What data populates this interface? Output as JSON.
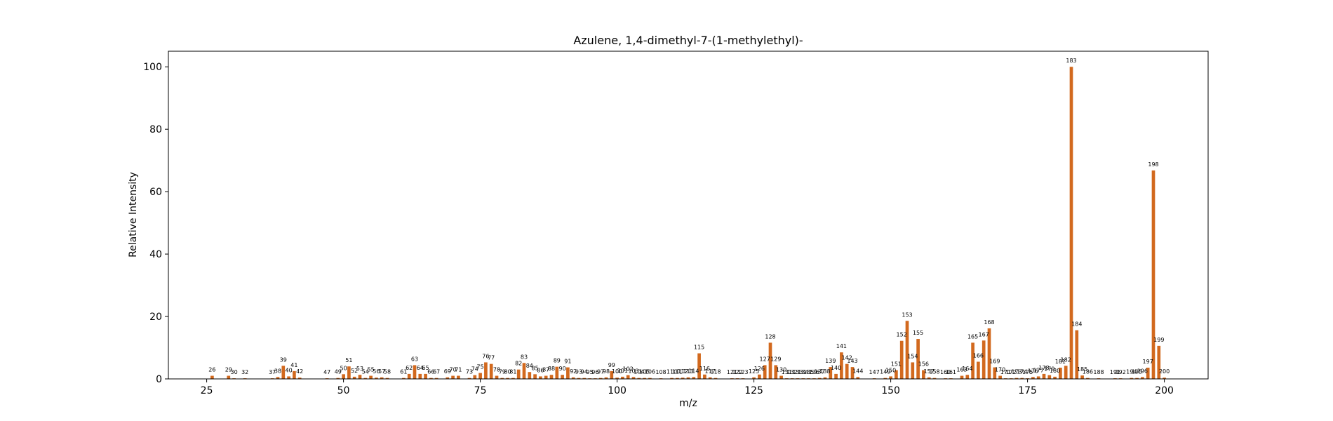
{
  "chart_data": {
    "type": "bar",
    "title": "Azulene, 1,4-dimethyl-7-(1-methylethyl)-",
    "xlabel": "m/z",
    "ylabel": "Relative Intensity",
    "xlim": [
      18,
      208
    ],
    "ylim": [
      0,
      105
    ],
    "xticks": [
      25,
      50,
      75,
      100,
      125,
      150,
      175,
      200
    ],
    "yticks": [
      0,
      20,
      40,
      60,
      80,
      100
    ],
    "grid": false,
    "bar_color": "#d2691e",
    "x": [
      26,
      29,
      30,
      32,
      37,
      38,
      39,
      40,
      41,
      42,
      47,
      49,
      50,
      51,
      52,
      53,
      54,
      55,
      56,
      57,
      58,
      61,
      62,
      63,
      64,
      65,
      66,
      67,
      69,
      70,
      71,
      73,
      74,
      75,
      76,
      77,
      78,
      79,
      80,
      81,
      82,
      83,
      84,
      85,
      86,
      87,
      88,
      89,
      90,
      91,
      92,
      93,
      94,
      95,
      96,
      97,
      98,
      99,
      100,
      101,
      102,
      103,
      104,
      105,
      106,
      108,
      110,
      111,
      112,
      113,
      114,
      115,
      116,
      117,
      118,
      121,
      122,
      123,
      125,
      126,
      127,
      128,
      129,
      130,
      131,
      132,
      133,
      134,
      135,
      136,
      137,
      138,
      139,
      140,
      141,
      142,
      143,
      144,
      147,
      149,
      150,
      151,
      152,
      153,
      154,
      155,
      156,
      157,
      158,
      160,
      161,
      163,
      164,
      165,
      166,
      167,
      168,
      169,
      170,
      171,
      172,
      173,
      174,
      175,
      176,
      177,
      178,
      179,
      180,
      181,
      182,
      183,
      184,
      185,
      186,
      188,
      191,
      192,
      194,
      195,
      196,
      197,
      198,
      199,
      200
    ],
    "values": [
      1.0,
      1.0,
      0.2,
      0.2,
      0.2,
      0.6,
      4.2,
      0.8,
      2.5,
      0.4,
      0.2,
      0.3,
      1.5,
      4.0,
      0.7,
      1.3,
      0.3,
      1.0,
      0.4,
      0.5,
      0.3,
      0.3,
      1.6,
      4.4,
      1.6,
      1.6,
      0.3,
      0.3,
      0.5,
      1.0,
      1.0,
      0.3,
      1.2,
      1.9,
      5.3,
      4.8,
      1.0,
      0.3,
      0.3,
      0.3,
      3.0,
      5.1,
      2.2,
      1.5,
      0.8,
      1.0,
      1.3,
      3.9,
      1.3,
      3.7,
      0.5,
      0.3,
      0.3,
      0.2,
      0.2,
      0.3,
      0.5,
      2.5,
      0.4,
      0.7,
      1.2,
      0.6,
      0.3,
      0.3,
      0.3,
      0.2,
      0.3,
      0.3,
      0.4,
      0.5,
      0.6,
      8.2,
      1.4,
      0.5,
      0.3,
      0.2,
      0.2,
      0.2,
      0.5,
      1.4,
      4.4,
      11.6,
      4.4,
      1.0,
      0.2,
      0.2,
      0.2,
      0.2,
      0.2,
      0.2,
      0.3,
      0.5,
      3.8,
      1.6,
      8.5,
      4.8,
      3.8,
      0.6,
      0.2,
      0.3,
      0.8,
      2.8,
      12.2,
      18.6,
      5.3,
      12.8,
      2.8,
      0.5,
      0.3,
      0.2,
      0.2,
      1.0,
      1.3,
      11.6,
      5.5,
      12.3,
      16.2,
      3.7,
      1.0,
      0.2,
      0.2,
      0.3,
      0.3,
      0.2,
      0.6,
      0.8,
      1.6,
      1.2,
      0.7,
      3.6,
      4.2,
      100.0,
      15.6,
      1.1,
      0.3,
      0.2,
      0.2,
      0.2,
      0.3,
      0.3,
      0.6,
      3.6,
      66.8,
      10.6,
      0.4
    ],
    "labels": [
      "26",
      "29",
      "30",
      "32",
      "37",
      "38",
      "39",
      "40",
      "41",
      "42",
      "47",
      "49",
      "50",
      "51",
      "52",
      "53",
      "54",
      "55",
      "56",
      "57",
      "58",
      "61",
      "62",
      "63",
      "64",
      "65",
      "66",
      "67",
      "69",
      "70",
      "71",
      "73",
      "74",
      "75",
      "76",
      "77",
      "78",
      "79",
      "80",
      "81",
      "82",
      "83",
      "84",
      "85",
      "86",
      "87",
      "88",
      "89",
      "90",
      "91",
      "92",
      "93",
      "94",
      "95",
      "96",
      "97",
      "98",
      "99",
      "100",
      "101",
      "102",
      "103",
      "104",
      "105",
      "106",
      "108",
      "110",
      "111",
      "112",
      "113",
      "114",
      "115",
      "116",
      "117",
      "118",
      "121",
      "122",
      "123",
      "125",
      "126",
      "127",
      "128",
      "129",
      "130",
      "131",
      "132",
      "133",
      "134",
      "135",
      "136",
      "137",
      "138",
      "139",
      "140",
      "141",
      "142",
      "143",
      "144",
      "147",
      "149",
      "150",
      "151",
      "152",
      "153",
      "154",
      "155",
      "156",
      "157",
      "158",
      "160",
      "161",
      "163",
      "164",
      "165",
      "166",
      "167",
      "168",
      "169",
      "170",
      "171",
      "172",
      "173",
      "174",
      "175",
      "176",
      "177",
      "178",
      "179",
      "180",
      "181",
      "182",
      "183",
      "184",
      "185",
      "186",
      "188",
      "191",
      "192",
      "194",
      "195",
      "196",
      "197",
      "198",
      "199",
      "200"
    ]
  }
}
